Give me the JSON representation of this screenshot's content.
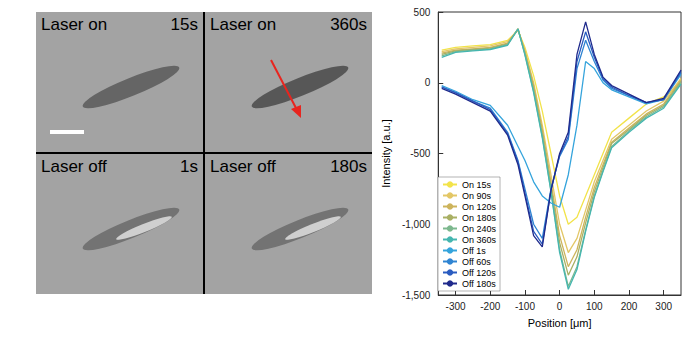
{
  "panels": [
    {
      "label": "Laser on",
      "time": "15s"
    },
    {
      "label": "Laser on",
      "time": "360s"
    },
    {
      "label": "Laser off",
      "time": "1s"
    },
    {
      "label": "Laser off",
      "time": "180s"
    }
  ],
  "chart_data": {
    "type": "line",
    "x_label": "Position [μm]",
    "y_label": "Intensity [a.u.]",
    "x": [
      -340,
      -300,
      -250,
      -200,
      -150,
      -120,
      -100,
      -75,
      -50,
      -25,
      0,
      25,
      50,
      75,
      100,
      125,
      150,
      200,
      250,
      300,
      350
    ],
    "series": [
      {
        "name": "On 15s",
        "color": "#f2e34a",
        "values": [
          230,
          250,
          260,
          270,
          300,
          370,
          250,
          50,
          -200,
          -500,
          -800,
          -1000,
          -950,
          -800,
          -650,
          -500,
          -350,
          -250,
          -150,
          -100,
          0
        ]
      },
      {
        "name": "On 90s",
        "color": "#e3c766",
        "values": [
          220,
          240,
          250,
          260,
          290,
          370,
          230,
          0,
          -300,
          -650,
          -1000,
          -1200,
          -1100,
          -900,
          -700,
          -550,
          -400,
          -300,
          -200,
          -130,
          30
        ]
      },
      {
        "name": "On 120s",
        "color": "#cdb45c",
        "values": [
          210,
          230,
          240,
          250,
          280,
          380,
          220,
          -20,
          -330,
          -700,
          -1080,
          -1300,
          -1180,
          -950,
          -740,
          -580,
          -420,
          -320,
          -220,
          -150,
          20
        ]
      },
      {
        "name": "On 180s",
        "color": "#a9b064",
        "values": [
          200,
          225,
          235,
          245,
          275,
          380,
          210,
          -40,
          -360,
          -730,
          -1130,
          -1360,
          -1230,
          -990,
          -770,
          -600,
          -430,
          -330,
          -230,
          -160,
          10
        ]
      },
      {
        "name": "On 240s",
        "color": "#7db88e",
        "values": [
          190,
          220,
          230,
          240,
          270,
          380,
          200,
          -60,
          -380,
          -760,
          -1180,
          -1440,
          -1300,
          -1040,
          -800,
          -620,
          -450,
          -340,
          -240,
          -170,
          0
        ]
      },
      {
        "name": "On 360s",
        "color": "#45b6b0",
        "values": [
          180,
          215,
          225,
          235,
          265,
          380,
          195,
          -70,
          -390,
          -770,
          -1200,
          -1460,
          -1320,
          -1050,
          -810,
          -630,
          -460,
          -350,
          -250,
          -180,
          -10
        ]
      },
      {
        "name": "Off 1s",
        "color": "#35a4dc",
        "values": [
          -20,
          -60,
          -120,
          -160,
          -300,
          -450,
          -550,
          -700,
          -800,
          -850,
          -880,
          -650,
          -300,
          150,
          100,
          0,
          -50,
          -100,
          -150,
          -120,
          60
        ]
      },
      {
        "name": "Off 60s",
        "color": "#2f84d2",
        "values": [
          -30,
          -70,
          -130,
          -180,
          -350,
          -550,
          -750,
          -1000,
          -1100,
          -750,
          -520,
          -400,
          100,
          300,
          150,
          20,
          -40,
          -90,
          -140,
          -120,
          70
        ]
      },
      {
        "name": "Off 120s",
        "color": "#2a5cc0",
        "values": [
          -30,
          -70,
          -130,
          -190,
          -360,
          -560,
          -780,
          -1050,
          -1140,
          -760,
          -510,
          -380,
          150,
          360,
          180,
          30,
          -30,
          -90,
          -140,
          -120,
          80
        ]
      },
      {
        "name": "Off 180s",
        "color": "#1f2a8c",
        "values": [
          -40,
          -80,
          -140,
          -200,
          -370,
          -580,
          -800,
          -1080,
          -1160,
          -760,
          -500,
          -350,
          200,
          430,
          200,
          40,
          -20,
          -80,
          -140,
          -110,
          90
        ]
      }
    ],
    "xlim": [
      -350,
      350
    ],
    "xticks": [
      -300,
      -200,
      -100,
      0,
      100,
      200,
      300
    ],
    "ylim": [
      -1500,
      500
    ],
    "yticks": [
      -1500,
      -1000,
      -500,
      0,
      500
    ],
    "grid": false,
    "legend": "lower left"
  }
}
